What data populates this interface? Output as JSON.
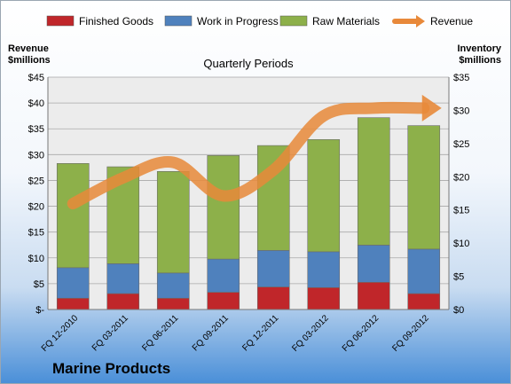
{
  "colors": {
    "finished_goods": "#c0262a",
    "work_in_progress": "#4f81bd",
    "raw_materials": "#8db04a",
    "revenue": "#e8893a"
  },
  "chart_data": {
    "type": "bar",
    "stacked": true,
    "title": "Quarterly Periods",
    "footer_title": "Marine Products",
    "ylabel_left": "Revenue\n$millions",
    "ylabel_right": "Inventory\n$millions",
    "categories": [
      "FQ 12-2010",
      "FQ 03-2011",
      "FQ 06-2011",
      "FQ 09-2011",
      "FQ 12-2011",
      "FQ 03-2012",
      "FQ 06-2012",
      "FQ 09-2012"
    ],
    "series": [
      {
        "name": "Finished Goods",
        "type": "bar",
        "axis": "right",
        "values": [
          1.7,
          2.4,
          1.7,
          2.6,
          3.4,
          3.3,
          4.1,
          2.4
        ]
      },
      {
        "name": "Work in Progress",
        "type": "bar",
        "axis": "right",
        "values": [
          4.6,
          4.5,
          3.8,
          5.0,
          5.5,
          5.4,
          5.6,
          6.7
        ]
      },
      {
        "name": "Raw Materials",
        "type": "bar",
        "axis": "right",
        "values": [
          15.7,
          14.6,
          15.3,
          15.6,
          15.8,
          16.9,
          19.2,
          18.6
        ]
      },
      {
        "name": "Revenue",
        "type": "line",
        "axis": "left",
        "values": [
          20.5,
          25.5,
          28.5,
          22.0,
          27.0,
          37.5,
          39.0,
          39.0
        ]
      }
    ],
    "ylim_left": [
      0,
      45
    ],
    "ylim_right": [
      0,
      35
    ],
    "left_ticks": [
      "$-",
      "$5",
      "$10",
      "$15",
      "$20",
      "$25",
      "$30",
      "$35",
      "$40",
      "$45"
    ],
    "right_ticks": [
      "$0",
      "$5",
      "$10",
      "$15",
      "$20",
      "$25",
      "$30",
      "$35"
    ],
    "legend_position": "top",
    "grid": true
  }
}
